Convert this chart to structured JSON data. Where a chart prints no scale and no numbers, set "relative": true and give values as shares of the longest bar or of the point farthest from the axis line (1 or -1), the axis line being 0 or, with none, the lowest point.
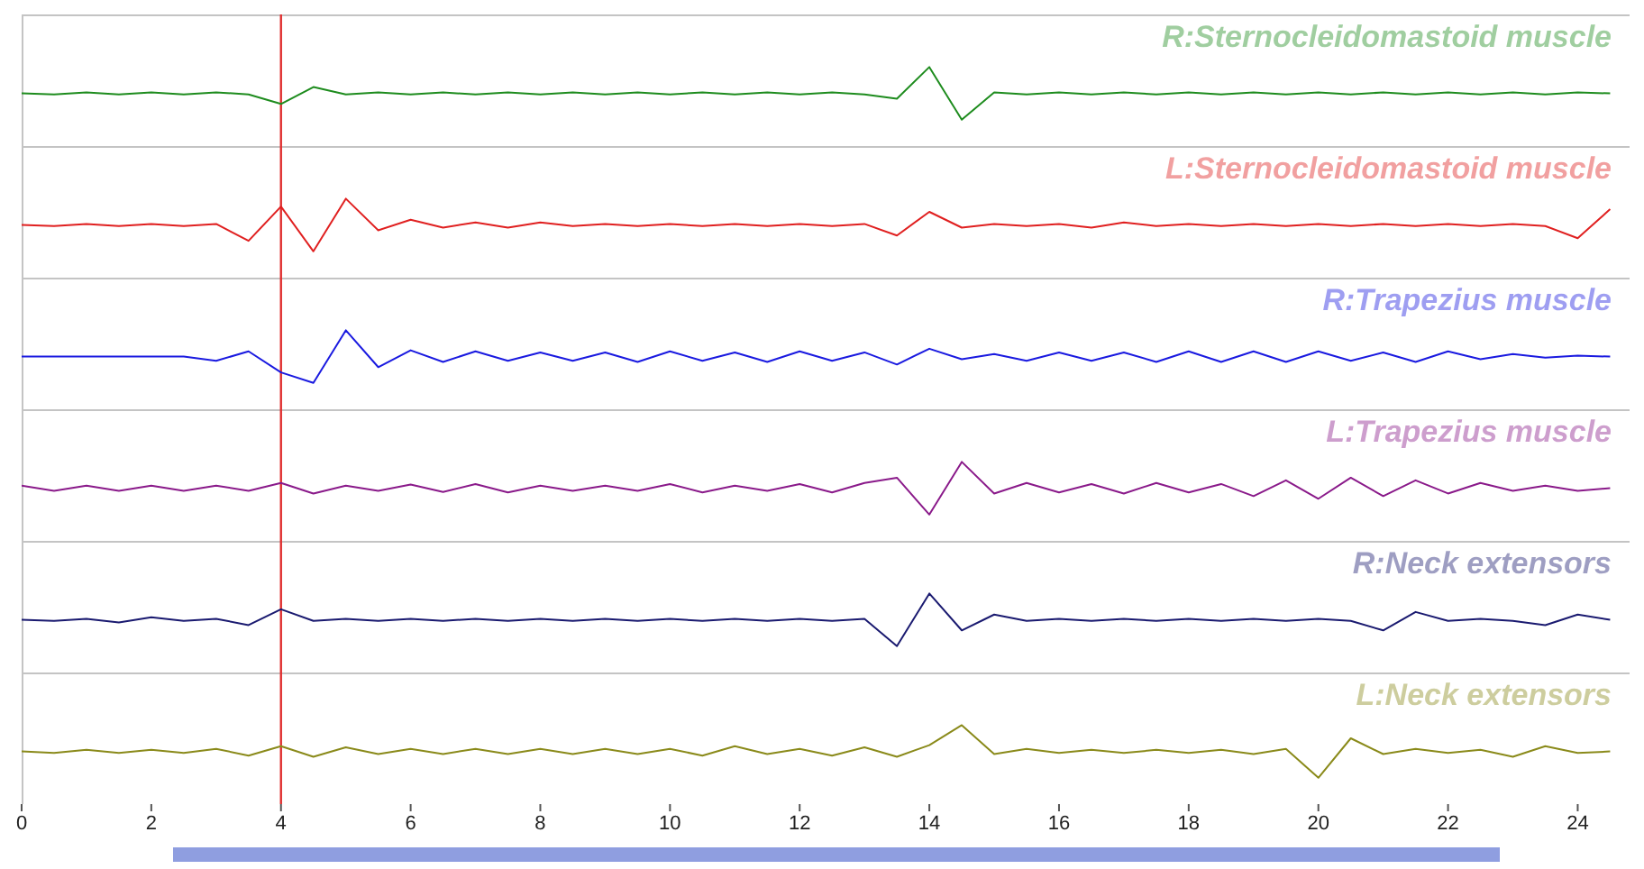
{
  "chart_data": [
    {
      "type": "line",
      "relative": true,
      "tick_labels": false,
      "xlim": [
        0,
        24.8
      ],
      "ref_lines": [
        {
          "axis": "x",
          "value": 4,
          "color": "#e03030"
        }
      ],
      "x": [
        0,
        0.5,
        1,
        1.5,
        2,
        2.5,
        3,
        3.5,
        4,
        4.5,
        5,
        5.5,
        6,
        6.5,
        7,
        7.5,
        8,
        8.5,
        9,
        9.5,
        10,
        10.5,
        11,
        11.5,
        12,
        12.5,
        13,
        13.5,
        14,
        14.5,
        15,
        15.5,
        16,
        16.5,
        17,
        17.5,
        18,
        18.5,
        19,
        19.5,
        20,
        20.5,
        21,
        21.5,
        22,
        22.5,
        23,
        23.5,
        24,
        24.5
      ],
      "series": [
        {
          "name": "R:Sternocleidomastoid muscle",
          "color": "#1e8c1e",
          "values": [
            0.5,
            0.48,
            0.52,
            0.48,
            0.52,
            0.48,
            0.52,
            0.48,
            0.3,
            0.62,
            0.48,
            0.52,
            0.48,
            0.52,
            0.48,
            0.52,
            0.48,
            0.52,
            0.48,
            0.52,
            0.48,
            0.52,
            0.48,
            0.52,
            0.48,
            0.52,
            0.48,
            0.4,
            1,
            0,
            0.52,
            0.48,
            0.52,
            0.48,
            0.52,
            0.48,
            0.52,
            0.48,
            0.52,
            0.48,
            0.52,
            0.48,
            0.52,
            0.48,
            0.52,
            0.48,
            0.52,
            0.48,
            0.52,
            0.5
          ]
        }
      ]
    },
    {
      "type": "line",
      "relative": true,
      "tick_labels": false,
      "xlim": [
        0,
        24.8
      ],
      "ref_lines": [
        {
          "axis": "x",
          "value": 4,
          "color": "#e03030"
        }
      ],
      "x": [
        0,
        0.5,
        1,
        1.5,
        2,
        2.5,
        3,
        3.5,
        4,
        4.5,
        5,
        5.5,
        6,
        6.5,
        7,
        7.5,
        8,
        8.5,
        9,
        9.5,
        10,
        10.5,
        11,
        11.5,
        12,
        12.5,
        13,
        13.5,
        14,
        14.5,
        15,
        15.5,
        16,
        16.5,
        17,
        17.5,
        18,
        18.5,
        19,
        19.5,
        20,
        20.5,
        21,
        21.5,
        22,
        22.5,
        23,
        23.5,
        24,
        24.5
      ],
      "series": [
        {
          "name": "L:Sternocleidomastoid muscle",
          "color": "#e02020",
          "values": [
            0.5,
            0.48,
            0.52,
            0.48,
            0.52,
            0.48,
            0.52,
            0.2,
            0.85,
            0,
            1,
            0.4,
            0.6,
            0.45,
            0.55,
            0.45,
            0.55,
            0.48,
            0.52,
            0.48,
            0.52,
            0.48,
            0.52,
            0.48,
            0.52,
            0.48,
            0.52,
            0.3,
            0.75,
            0.45,
            0.52,
            0.48,
            0.52,
            0.45,
            0.55,
            0.48,
            0.52,
            0.48,
            0.52,
            0.48,
            0.52,
            0.48,
            0.52,
            0.48,
            0.52,
            0.48,
            0.52,
            0.48,
            0.25,
            0.8
          ]
        }
      ]
    },
    {
      "type": "line",
      "relative": true,
      "tick_labels": false,
      "xlim": [
        0,
        24.8
      ],
      "ref_lines": [
        {
          "axis": "x",
          "value": 4,
          "color": "#e03030"
        }
      ],
      "x": [
        0,
        0.5,
        1,
        1.5,
        2,
        2.5,
        3,
        3.5,
        4,
        4.5,
        5,
        5.5,
        6,
        6.5,
        7,
        7.5,
        8,
        8.5,
        9,
        9.5,
        10,
        10.5,
        11,
        11.5,
        12,
        12.5,
        13,
        13.5,
        14,
        14.5,
        15,
        15.5,
        16,
        16.5,
        17,
        17.5,
        18,
        18.5,
        19,
        19.5,
        20,
        20.5,
        21,
        21.5,
        22,
        22.5,
        23,
        23.5,
        24,
        24.5
      ],
      "series": [
        {
          "name": "R:Trapezius muscle",
          "color": "#1a1ae0",
          "values": [
            0.5,
            0.5,
            0.5,
            0.5,
            0.5,
            0.5,
            0.42,
            0.6,
            0.2,
            0,
            1,
            0.3,
            0.62,
            0.4,
            0.6,
            0.42,
            0.58,
            0.42,
            0.58,
            0.4,
            0.6,
            0.42,
            0.58,
            0.4,
            0.6,
            0.42,
            0.58,
            0.35,
            0.65,
            0.45,
            0.55,
            0.42,
            0.58,
            0.42,
            0.58,
            0.4,
            0.6,
            0.4,
            0.6,
            0.4,
            0.6,
            0.42,
            0.58,
            0.4,
            0.6,
            0.45,
            0.55,
            0.48,
            0.52,
            0.5
          ]
        }
      ]
    },
    {
      "type": "line",
      "relative": true,
      "tick_labels": false,
      "xlim": [
        0,
        24.8
      ],
      "ref_lines": [
        {
          "axis": "x",
          "value": 4,
          "color": "#e03030"
        }
      ],
      "x": [
        0,
        0.5,
        1,
        1.5,
        2,
        2.5,
        3,
        3.5,
        4,
        4.5,
        5,
        5.5,
        6,
        6.5,
        7,
        7.5,
        8,
        8.5,
        9,
        9.5,
        10,
        10.5,
        11,
        11.5,
        12,
        12.5,
        13,
        13.5,
        14,
        14.5,
        15,
        15.5,
        16,
        16.5,
        17,
        17.5,
        18,
        18.5,
        19,
        19.5,
        20,
        20.5,
        21,
        21.5,
        22,
        22.5,
        23,
        23.5,
        24,
        24.5
      ],
      "series": [
        {
          "name": "L:Trapezius muscle",
          "color": "#8a1a8a",
          "values": [
            0.55,
            0.45,
            0.55,
            0.45,
            0.55,
            0.45,
            0.55,
            0.45,
            0.6,
            0.4,
            0.55,
            0.45,
            0.57,
            0.43,
            0.58,
            0.42,
            0.55,
            0.45,
            0.55,
            0.45,
            0.58,
            0.42,
            0.55,
            0.45,
            0.58,
            0.42,
            0.6,
            0.7,
            0,
            1,
            0.4,
            0.6,
            0.42,
            0.58,
            0.4,
            0.6,
            0.42,
            0.58,
            0.35,
            0.65,
            0.3,
            0.7,
            0.35,
            0.65,
            0.4,
            0.6,
            0.45,
            0.55,
            0.45,
            0.5
          ]
        }
      ]
    },
    {
      "type": "line",
      "relative": true,
      "tick_labels": false,
      "xlim": [
        0,
        24.8
      ],
      "ref_lines": [
        {
          "axis": "x",
          "value": 4,
          "color": "#e03030"
        }
      ],
      "x": [
        0,
        0.5,
        1,
        1.5,
        2,
        2.5,
        3,
        3.5,
        4,
        4.5,
        5,
        5.5,
        6,
        6.5,
        7,
        7.5,
        8,
        8.5,
        9,
        9.5,
        10,
        10.5,
        11,
        11.5,
        12,
        12.5,
        13,
        13.5,
        14,
        14.5,
        15,
        15.5,
        16,
        16.5,
        17,
        17.5,
        18,
        18.5,
        19,
        19.5,
        20,
        20.5,
        21,
        21.5,
        22,
        22.5,
        23,
        23.5,
        24,
        24.5
      ],
      "series": [
        {
          "name": "R:Neck extensors",
          "color": "#1a1a70",
          "values": [
            0.5,
            0.48,
            0.52,
            0.45,
            0.55,
            0.48,
            0.52,
            0.4,
            0.7,
            0.48,
            0.52,
            0.48,
            0.52,
            0.48,
            0.52,
            0.48,
            0.52,
            0.48,
            0.52,
            0.48,
            0.52,
            0.48,
            0.52,
            0.48,
            0.52,
            0.48,
            0.52,
            0,
            1,
            0.3,
            0.6,
            0.48,
            0.52,
            0.48,
            0.52,
            0.48,
            0.52,
            0.48,
            0.52,
            0.48,
            0.52,
            0.48,
            0.3,
            0.65,
            0.48,
            0.52,
            0.48,
            0.4,
            0.6,
            0.5
          ]
        }
      ]
    },
    {
      "type": "line",
      "relative": true,
      "tick_labels": "x",
      "xlim": [
        0,
        24.8
      ],
      "xticks": [
        0,
        2,
        4,
        6,
        8,
        10,
        12,
        14,
        16,
        18,
        20,
        22,
        24
      ],
      "ref_lines": [
        {
          "axis": "x",
          "value": 4,
          "color": "#e03030"
        }
      ],
      "x": [
        0,
        0.5,
        1,
        1.5,
        2,
        2.5,
        3,
        3.5,
        4,
        4.5,
        5,
        5.5,
        6,
        6.5,
        7,
        7.5,
        8,
        8.5,
        9,
        9.5,
        10,
        10.5,
        11,
        11.5,
        12,
        12.5,
        13,
        13.5,
        14,
        14.5,
        15,
        15.5,
        16,
        16.5,
        17,
        17.5,
        18,
        18.5,
        19,
        19.5,
        20,
        20.5,
        21,
        21.5,
        22,
        22.5,
        23,
        23.5,
        24,
        24.5
      ],
      "series": [
        {
          "name": "L:Neck extensors",
          "color": "#8a8a1a",
          "values": [
            0.5,
            0.47,
            0.53,
            0.47,
            0.53,
            0.47,
            0.55,
            0.42,
            0.6,
            0.4,
            0.58,
            0.45,
            0.55,
            0.45,
            0.55,
            0.45,
            0.55,
            0.45,
            0.55,
            0.45,
            0.55,
            0.42,
            0.6,
            0.45,
            0.55,
            0.42,
            0.58,
            0.4,
            0.62,
            1,
            0.45,
            0.55,
            0.47,
            0.53,
            0.47,
            0.53,
            0.47,
            0.53,
            0.45,
            0.55,
            0,
            0.75,
            0.45,
            0.55,
            0.47,
            0.53,
            0.4,
            0.6,
            0.47,
            0.5
          ]
        }
      ]
    }
  ]
}
